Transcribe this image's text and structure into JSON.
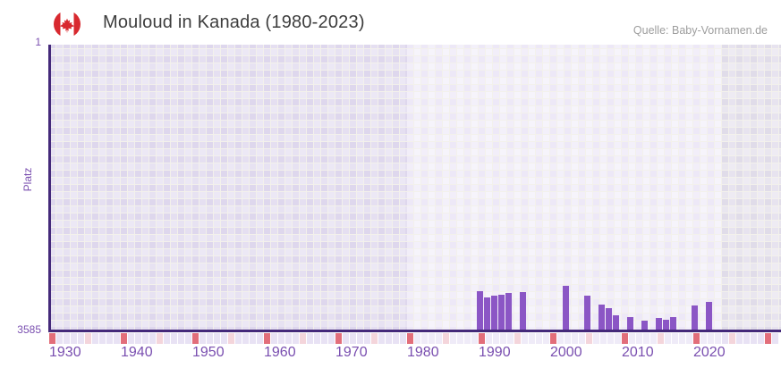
{
  "header": {
    "flag_icon": "canada-flag",
    "title": "Mouloud in Kanada (1980-2023)",
    "source": "Quelle: Baby-Vornamen.de"
  },
  "chart_data": {
    "type": "bar",
    "title": "Mouloud in Kanada (1980-2023)",
    "ylabel": "Platz",
    "xlabel": "",
    "grid": true,
    "legend": "none",
    "y_axis": {
      "min": 1,
      "max": 3585,
      "inverted": true,
      "top_tick_label": "1",
      "bottom_tick_label": "3585"
    },
    "x_axis": {
      "start_year": 1930,
      "end_year": 2031,
      "tick_interval_years": 1,
      "decade_tick_labels": [
        "1930",
        "1940",
        "1950",
        "1960",
        "1970",
        "1980",
        "1990",
        "2000",
        "2010",
        "2020"
      ]
    },
    "highlight_year_range": [
      1980,
      2023
    ],
    "series": [
      {
        "name": "Platz",
        "points": [
          {
            "year": 1990,
            "rank": 3100
          },
          {
            "year": 1991,
            "rank": 3180
          },
          {
            "year": 1992,
            "rank": 3160
          },
          {
            "year": 1993,
            "rank": 3145
          },
          {
            "year": 1994,
            "rank": 3125
          },
          {
            "year": 1996,
            "rank": 3115
          },
          {
            "year": 2002,
            "rank": 3035
          },
          {
            "year": 2005,
            "rank": 3160
          },
          {
            "year": 2007,
            "rank": 3270
          },
          {
            "year": 2008,
            "rank": 3310
          },
          {
            "year": 2009,
            "rank": 3410
          },
          {
            "year": 2011,
            "rank": 3425
          },
          {
            "year": 2013,
            "rank": 3475
          },
          {
            "year": 2015,
            "rank": 3440
          },
          {
            "year": 2016,
            "rank": 3460
          },
          {
            "year": 2017,
            "rank": 3425
          },
          {
            "year": 2020,
            "rank": 3280
          },
          {
            "year": 2022,
            "rank": 3235
          }
        ]
      }
    ]
  },
  "colors": {
    "bar": "#8b56c5",
    "axis_line": "#44297a",
    "axis_label": "#7a4fb0",
    "title_text": "#3d3d3d",
    "source_text": "#9d9d9d",
    "tick_decade": "#e26e7a",
    "tick_half_decade": "#f4d5db",
    "tick_year": "#e8e2f4",
    "tick_year_highlight": "#efebf8",
    "plot_bg_outer_a": "#ded7ed",
    "plot_bg_outer_b": "#e5dff1",
    "plot_bg_highlight_a": "#ede8f7",
    "plot_bg_highlight_b": "#f3f0fa",
    "plot_bg_right_a": "#e0dce9",
    "plot_bg_right_b": "#e7e3ef",
    "grid_line": "#f3f1ec",
    "flag_red": "#d8292f"
  }
}
